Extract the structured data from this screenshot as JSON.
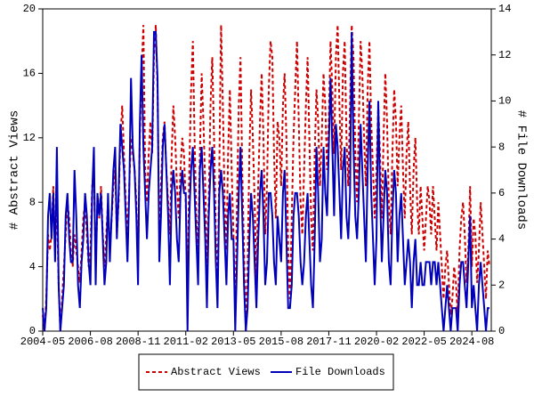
{
  "chart_data": {
    "type": "line",
    "categories": [
      "2004-05",
      null,
      null,
      null,
      null,
      null,
      null,
      null,
      null,
      null,
      null,
      null,
      null,
      null,
      null,
      null,
      null,
      null,
      null,
      null,
      null,
      null,
      null,
      null,
      null,
      null,
      null,
      "2006-08",
      null,
      null,
      null,
      null,
      null,
      null,
      null,
      null,
      null,
      null,
      null,
      null,
      null,
      null,
      null,
      null,
      null,
      null,
      null,
      null,
      null,
      null,
      null,
      null,
      null,
      null,
      "2008-11",
      null,
      null,
      null,
      null,
      null,
      null,
      null,
      null,
      null,
      null,
      null,
      null,
      null,
      null,
      null,
      null,
      null,
      null,
      null,
      null,
      null,
      null,
      null,
      null,
      null,
      null,
      "2011-02",
      null,
      null,
      null,
      null,
      null,
      null,
      null,
      null,
      null,
      null,
      null,
      null,
      null,
      null,
      null,
      null,
      null,
      null,
      null,
      null,
      null,
      null,
      null,
      null,
      null,
      null,
      "2013-05",
      null,
      null,
      null,
      null,
      null,
      null,
      null,
      null,
      null,
      null,
      null,
      null,
      null,
      null,
      null,
      null,
      null,
      null,
      null,
      null,
      null,
      null,
      null,
      null,
      null,
      null,
      "2015-08",
      null,
      null,
      null,
      null,
      null,
      null,
      null,
      null,
      null,
      null,
      null,
      null,
      null,
      null,
      null,
      null,
      null,
      null,
      null,
      null,
      null,
      null,
      null,
      null,
      null,
      null,
      "2017-11",
      null,
      null,
      null,
      null,
      null,
      null,
      null,
      null,
      null,
      null,
      null,
      null,
      null,
      null,
      null,
      null,
      null,
      null,
      null,
      null,
      null,
      null,
      null,
      null,
      null,
      null,
      "2020-02",
      null,
      null,
      null,
      null,
      null,
      null,
      null,
      null,
      null,
      null,
      null,
      null,
      null,
      null,
      null,
      null,
      null,
      null,
      null,
      null,
      null,
      null,
      null,
      null,
      null,
      null,
      "2022-05",
      null,
      null,
      null,
      null,
      null,
      null,
      null,
      null,
      null,
      null,
      null,
      null,
      null,
      null,
      null,
      null,
      null,
      null,
      null,
      null,
      null,
      null,
      null,
      null,
      null,
      null,
      "2024-08",
      null,
      null,
      null,
      null,
      null,
      null,
      null,
      null,
      null,
      null
    ],
    "series": [
      {
        "name": "Abstract Views",
        "color": "#cc0000",
        "dashed": true,
        "axis": "y",
        "values": [
          1,
          0,
          2,
          6,
          5,
          6,
          9,
          5,
          8,
          3,
          0,
          2,
          4,
          6,
          8,
          7,
          5,
          4,
          6,
          5,
          4,
          3,
          5,
          7,
          8,
          6,
          4,
          5,
          9,
          10,
          4,
          8,
          7,
          9,
          6,
          4,
          6,
          8,
          5,
          7,
          9,
          10,
          6,
          8,
          12,
          14,
          11,
          8,
          6,
          9,
          12,
          11,
          10,
          8,
          4,
          12,
          16,
          19,
          10,
          8,
          11,
          13,
          11,
          17,
          19,
          15,
          6,
          9,
          12,
          13,
          10,
          8,
          6,
          11,
          14,
          12,
          9,
          7,
          10,
          12,
          11,
          8,
          3,
          10,
          15,
          18,
          12,
          7,
          5,
          11,
          16,
          13,
          9,
          4,
          8,
          14,
          17,
          12,
          6,
          3,
          10,
          19,
          14,
          8,
          5,
          11,
          15,
          10,
          6,
          1,
          8,
          14,
          17,
          10,
          5,
          0,
          4,
          11,
          15,
          12,
          8,
          3,
          9,
          13,
          16,
          12,
          6,
          9,
          15,
          18,
          17,
          11,
          7,
          13,
          12,
          9,
          14,
          16,
          12,
          5,
          2,
          7,
          12,
          15,
          18,
          13,
          8,
          6,
          10,
          14,
          17,
          12,
          7,
          5,
          11,
          15,
          13,
          9,
          12,
          16,
          14,
          10,
          13,
          18,
          15,
          11,
          17,
          19,
          14,
          10,
          16,
          18,
          12,
          9,
          14,
          19,
          17,
          11,
          8,
          13,
          18,
          16,
          12,
          9,
          15,
          18,
          13,
          10,
          7,
          10,
          14,
          11,
          7,
          12,
          16,
          13,
          8,
          6,
          11,
          15,
          13,
          9,
          12,
          14,
          10,
          7,
          11,
          13,
          9,
          6,
          10,
          12,
          8,
          6,
          9,
          7,
          5,
          7,
          9,
          8,
          6,
          9,
          7,
          5,
          8,
          6,
          4,
          2,
          4,
          5,
          3,
          1,
          2,
          4,
          3,
          1,
          5,
          7,
          8,
          6,
          3,
          5,
          9,
          4,
          7,
          6,
          3,
          5,
          8,
          6,
          4,
          2,
          5,
          4
        ]
      },
      {
        "name": "File Downloads",
        "color": "#0000bb",
        "dashed": false,
        "axis": "y2",
        "values": [
          1,
          0,
          1,
          5,
          6,
          4,
          6,
          3,
          8,
          2,
          0,
          1,
          2,
          5,
          6,
          4,
          3,
          3,
          7,
          5,
          2,
          1,
          3,
          4,
          6,
          5,
          3,
          2,
          6,
          8,
          2,
          6,
          5,
          6,
          4,
          2,
          3,
          6,
          3,
          5,
          7,
          8,
          4,
          6,
          9,
          8,
          7,
          5,
          3,
          6,
          11,
          8,
          7,
          5,
          2,
          9,
          12,
          8,
          6,
          4,
          6,
          7,
          8,
          13,
          13,
          11,
          3,
          5,
          8,
          9,
          7,
          5,
          2,
          6,
          7,
          6,
          4,
          3,
          6,
          7,
          6,
          6,
          0,
          5,
          7,
          8,
          6,
          4,
          2,
          7,
          8,
          6,
          4,
          1,
          5,
          7,
          8,
          6,
          3,
          1,
          6,
          7,
          6,
          4,
          2,
          5,
          6,
          4,
          4,
          0,
          3,
          6,
          8,
          5,
          2,
          0,
          1,
          4,
          6,
          5,
          3,
          1,
          4,
          6,
          7,
          5,
          2,
          3,
          6,
          6,
          5,
          3,
          2,
          5,
          4,
          3,
          6,
          7,
          4,
          1,
          1,
          2,
          5,
          6,
          6,
          5,
          3,
          2,
          3,
          5,
          6,
          4,
          2,
          1,
          4,
          8,
          6,
          3,
          4,
          8,
          6,
          5,
          8,
          11,
          8,
          5,
          9,
          8,
          6,
          4,
          7,
          8,
          5,
          4,
          6,
          13,
          8,
          5,
          4,
          6,
          9,
          7,
          5,
          3,
          7,
          10,
          6,
          4,
          2,
          4,
          10,
          6,
          3,
          5,
          7,
          6,
          3,
          2,
          5,
          7,
          6,
          3,
          5,
          6,
          4,
          2,
          3,
          4,
          3,
          1,
          3,
          4,
          2,
          2,
          3,
          2,
          2,
          3,
          3,
          3,
          2,
          3,
          3,
          2,
          3,
          2,
          1,
          0,
          1,
          2,
          1,
          0,
          1,
          1,
          1,
          0,
          2,
          3,
          3,
          2,
          1,
          3,
          5,
          1,
          2,
          1,
          0,
          2,
          3,
          2,
          1,
          0,
          1,
          1
        ]
      }
    ],
    "ylabel": "# Abstract Views",
    "y2label": "# File Downloads",
    "ylim": [
      0,
      20
    ],
    "yticks": [
      0,
      4,
      8,
      12,
      16,
      20
    ],
    "y2lim": [
      0,
      14
    ],
    "y2ticks": [
      0,
      2,
      4,
      6,
      8,
      10,
      12,
      14
    ],
    "legend": "bottom"
  }
}
